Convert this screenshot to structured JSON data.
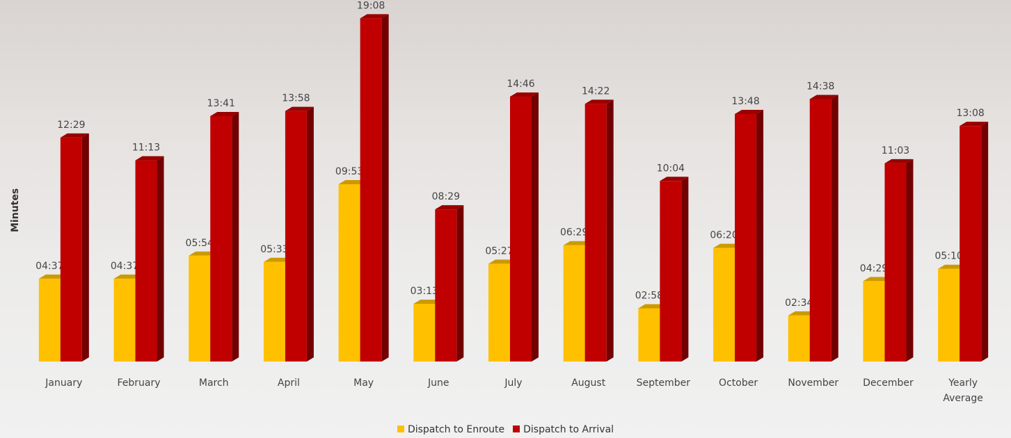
{
  "chart_data": {
    "type": "bar3d",
    "y_label": "Minutes",
    "categories": [
      "January",
      "February",
      "March",
      "April",
      "May",
      "June",
      "July",
      "August",
      "September",
      "October",
      "November",
      "December",
      "Yearly Average"
    ],
    "ylim": [
      0,
      20
    ],
    "series": [
      {
        "name": "Dispatch to Enroute",
        "color": "#ffc000",
        "values": [
          4.6167,
          4.6167,
          5.9,
          5.55,
          9.8833,
          3.2167,
          5.45,
          6.4833,
          2.9667,
          6.3333,
          2.5667,
          4.4833,
          5.1667
        ],
        "value_labels": [
          "04:37",
          "04:37",
          "05:54",
          "05:33",
          "09:53",
          "03:13",
          "05:27",
          "06:29",
          "02:58",
          "06:20",
          "02:34",
          "04:29",
          "05:10"
        ]
      },
      {
        "name": "Dispatch to Arrival",
        "color": "#c00000",
        "values": [
          12.4833,
          11.2167,
          13.6833,
          13.9667,
          19.1333,
          8.4833,
          14.7667,
          14.3667,
          10.0667,
          13.8,
          14.6333,
          11.05,
          13.1333
        ],
        "value_labels": [
          "12:29",
          "11:13",
          "13:41",
          "13:58",
          "19:08",
          "08:29",
          "14:46",
          "14:22",
          "10:04",
          "13:48",
          "14:38",
          "11:03",
          "13:08"
        ]
      }
    ]
  }
}
